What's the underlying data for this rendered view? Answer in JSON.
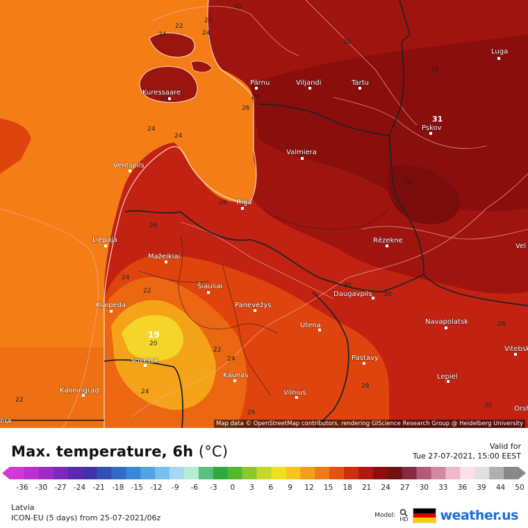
{
  "map": {
    "attribution": "Map data © OpenStreetMap contributors, rendering GIScience Research Group @ Heidelberg University",
    "cities": [
      {
        "name": "Pärnu"
      },
      {
        "name": "Viljandi"
      },
      {
        "name": "Tartu"
      },
      {
        "name": "Luga"
      },
      {
        "name": "Kuressaare"
      },
      {
        "name": "Pskov"
      },
      {
        "name": "Valmiera"
      },
      {
        "name": "Ventspils"
      },
      {
        "name": "Riga"
      },
      {
        "name": "Liepāja"
      },
      {
        "name": "Rēzekne"
      },
      {
        "name": "Mažeikiai"
      },
      {
        "name": "Šiauliai"
      },
      {
        "name": "Klaipėda"
      },
      {
        "name": "Panevėžys"
      },
      {
        "name": "Daugavpils"
      },
      {
        "name": "Navapolatsk"
      },
      {
        "name": "Utena"
      },
      {
        "name": "Vitebsk"
      },
      {
        "name": "Sovetsk"
      },
      {
        "name": "Pastavy"
      },
      {
        "name": "Kaunas"
      },
      {
        "name": "Lepiel"
      },
      {
        "name": "Kaliningrad"
      },
      {
        "name": "Vilnius"
      },
      {
        "name": "Orsha"
      },
      {
        "name": "Vel"
      },
      {
        "name": "ńsk"
      }
    ],
    "isoline_labels": [
      "24",
      "22",
      "24",
      "24",
      "24",
      "24",
      "26",
      "26",
      "24",
      "22",
      "20",
      "22",
      "24",
      "24",
      "22",
      "24",
      "26",
      "28",
      "30",
      "30",
      "30",
      "28",
      "30",
      "28",
      "26",
      "26",
      "31",
      "19",
      "30",
      "28"
    ]
  },
  "header": {
    "title": "Max. temperature, 6h",
    "unit": "(°C)",
    "valid_for_label": "Valid for",
    "valid_time": "Tue 27-07-2021, 15:00 EEST"
  },
  "scale": {
    "ticks": [
      "-36",
      "-30",
      "-27",
      "-24",
      "-21",
      "-18",
      "-15",
      "-12",
      "-9",
      "-6",
      "-3",
      "0",
      "3",
      "6",
      "9",
      "12",
      "15",
      "18",
      "21",
      "24",
      "27",
      "30",
      "33",
      "36",
      "39",
      "44",
      "50"
    ],
    "colors": [
      "#d238d6",
      "#b92fd0",
      "#9c2bc9",
      "#7a29c0",
      "#5d27b4",
      "#4231a8",
      "#3050b8",
      "#2f6ac8",
      "#3a86da",
      "#52a2e6",
      "#79bff0",
      "#a6d8f5",
      "#b8ecd0",
      "#58c07a",
      "#30a83e",
      "#52b82e",
      "#8cc82a",
      "#c6d828",
      "#f0e020",
      "#f5c51c",
      "#f2a018",
      "#ee7a14",
      "#e45210",
      "#cf2e10",
      "#b01810",
      "#8e0e10",
      "#701010",
      "#852a40",
      "#b05a78",
      "#d288a2",
      "#f0b8c8",
      "#fae0e8",
      "#e0e0e0",
      "#b0b0b0",
      "#888888"
    ]
  },
  "footer": {
    "region": "Latvia",
    "model_run": "ICON-EU (5 days) from 25-07-2021/06z",
    "model_word": "Model:",
    "hd_label": "HD",
    "brand_name": "weather.us"
  },
  "colors": {
    "sea_orange": "#f57d16",
    "deep_red": "#8a0e0c",
    "dark_red": "#a01410",
    "red": "#c22212",
    "orange_red": "#e0440e",
    "orange": "#ec6712",
    "amber": "#f5a41a",
    "yellow": "#f4d62a"
  }
}
